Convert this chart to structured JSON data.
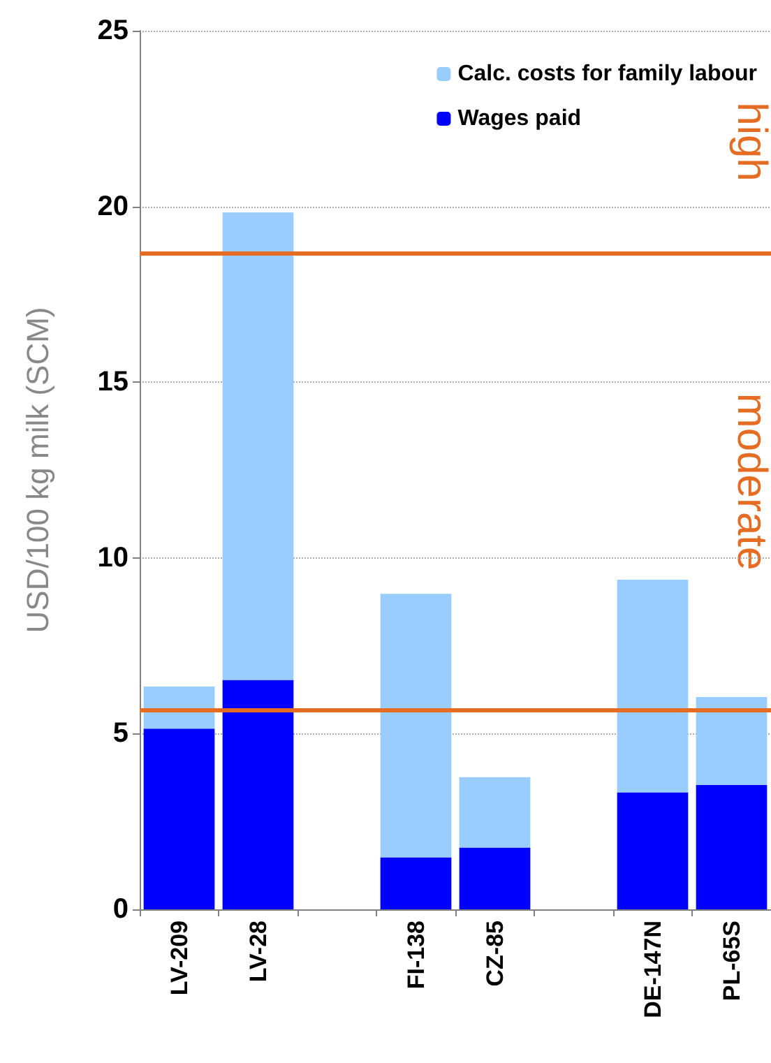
{
  "chart_data": {
    "type": "bar",
    "stacked": true,
    "ylabel": "USD/100 kg milk (SCM)",
    "categories": [
      "LV-209",
      "LV-28",
      null,
      "FI-138",
      "CZ-85",
      null,
      "DE-147N",
      "PL-65S"
    ],
    "series": [
      {
        "name": "Wages paid",
        "color": "#0000ff",
        "values": [
          5.14,
          6.53,
          null,
          1.48,
          1.76,
          null,
          3.33,
          3.54
        ]
      },
      {
        "name": "Calc. costs for family labour",
        "color": "#99ccff",
        "values": [
          1.2,
          13.3,
          null,
          7.5,
          2.0,
          null,
          6.05,
          2.5
        ]
      }
    ],
    "ylim": [
      0,
      25
    ],
    "yticks": [
      0,
      5,
      10,
      15,
      20,
      25
    ],
    "grid": "y",
    "legend": "top right",
    "ref_lines": [
      {
        "axis": "y",
        "value": 18.68,
        "color": "#e46c23"
      },
      {
        "axis": "y",
        "value": 5.66,
        "color": "#e46c23"
      }
    ],
    "annotations": [
      "high",
      "moderate"
    ]
  }
}
